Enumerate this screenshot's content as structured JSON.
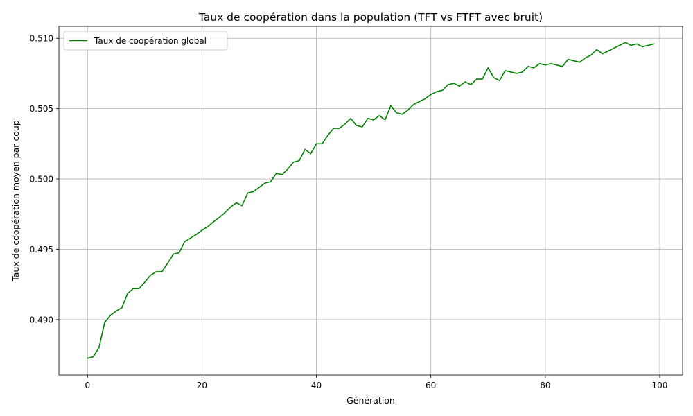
{
  "chart_data": {
    "type": "line",
    "title": "Taux de coopération dans la population (TFT vs FTFT avec bruit)",
    "xlabel": "Génération",
    "ylabel": "Taux de coopération moyen par coup",
    "xlim": [
      -5,
      104
    ],
    "ylim": [
      0.48605,
      0.51085
    ],
    "xticks": [
      0,
      20,
      40,
      60,
      80,
      100
    ],
    "xtick_labels": [
      "0",
      "20",
      "40",
      "60",
      "80",
      "100"
    ],
    "yticks": [
      0.49,
      0.495,
      0.5,
      0.505,
      0.51
    ],
    "ytick_labels": [
      "0.490",
      "0.495",
      "0.500",
      "0.505",
      "0.510"
    ],
    "grid": true,
    "legend_position": "top-left",
    "series": [
      {
        "name": "Taux de coopération global",
        "color": "#008000",
        "x": [
          0,
          1,
          2,
          3,
          4,
          5,
          6,
          7,
          8,
          9,
          10,
          11,
          12,
          13,
          14,
          15,
          16,
          17,
          18,
          19,
          20,
          21,
          22,
          23,
          24,
          25,
          26,
          27,
          28,
          29,
          30,
          31,
          32,
          33,
          34,
          35,
          36,
          37,
          38,
          39,
          40,
          41,
          42,
          43,
          44,
          45,
          46,
          47,
          48,
          49,
          50,
          51,
          52,
          53,
          54,
          55,
          56,
          57,
          58,
          59,
          60,
          61,
          62,
          63,
          64,
          65,
          66,
          67,
          68,
          69,
          70,
          71,
          72,
          73,
          74,
          75,
          76,
          77,
          78,
          79,
          80,
          81,
          82,
          83,
          84,
          85,
          86,
          87,
          88,
          89,
          90,
          91,
          92,
          93,
          94,
          95,
          96,
          97,
          98,
          99
        ],
        "y": [
          0.48725,
          0.48735,
          0.488,
          0.4898,
          0.4903,
          0.4906,
          0.49085,
          0.49185,
          0.4922,
          0.4922,
          0.49265,
          0.49315,
          0.4934,
          0.4934,
          0.494,
          0.49465,
          0.49475,
          0.49555,
          0.4958,
          0.49605,
          0.49635,
          0.4966,
          0.49695,
          0.49725,
          0.4976,
          0.498,
          0.4983,
          0.4981,
          0.499,
          0.4991,
          0.4994,
          0.4997,
          0.4998,
          0.5004,
          0.5003,
          0.5007,
          0.5012,
          0.5013,
          0.5021,
          0.5018,
          0.5025,
          0.5025,
          0.5031,
          0.5036,
          0.5036,
          0.5039,
          0.5043,
          0.5038,
          0.5037,
          0.5043,
          0.5042,
          0.5045,
          0.5042,
          0.5052,
          0.5047,
          0.5046,
          0.5049,
          0.5053,
          0.5055,
          0.5057,
          0.506,
          0.5062,
          0.5063,
          0.5067,
          0.5068,
          0.5066,
          0.5069,
          0.5067,
          0.5071,
          0.5071,
          0.5079,
          0.5072,
          0.507,
          0.5077,
          0.5076,
          0.5075,
          0.5076,
          0.508,
          0.5079,
          0.5082,
          0.5081,
          0.5082,
          0.5081,
          0.508,
          0.5085,
          0.5084,
          0.5083,
          0.5086,
          0.5088,
          0.5092,
          0.5089,
          0.5091,
          0.5093,
          0.5095,
          0.5097,
          0.5095,
          0.5096,
          0.5094,
          0.5095,
          0.5096
        ]
      }
    ]
  }
}
